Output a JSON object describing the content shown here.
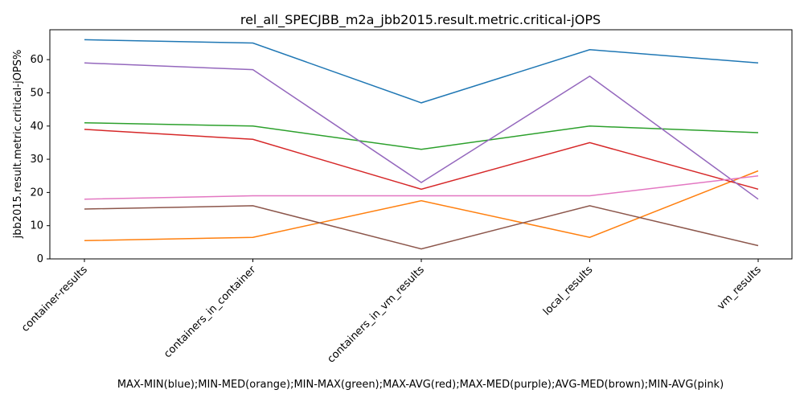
{
  "chart_data": {
    "type": "line",
    "title": "rel_all_SPECJBB_m2a_jbb2015.result.metric.critical-jOPS",
    "xlabel": "MAX-MIN(blue);MIN-MED(orange);MIN-MAX(green);MAX-AVG(red);MAX-MED(purple);AVG-MED(brown);MIN-AVG(pink)",
    "ylabel": "jbb2015.result.metric.critical-jOPS%",
    "categories": [
      "container-results",
      "containers_in_container",
      "containers_in_vm_results",
      "local_results",
      "vm_results"
    ],
    "ylim": [
      0,
      69
    ],
    "yticks": [
      0,
      10,
      20,
      30,
      40,
      50,
      60
    ],
    "grid": false,
    "series": [
      {
        "color": "#1f77b4",
        "values": [
          66,
          65,
          47,
          63,
          59
        ]
      },
      {
        "color": "#ff7f0e",
        "values": [
          5.5,
          6.5,
          17.5,
          6.5,
          26.5
        ]
      },
      {
        "color": "#2ca02c",
        "values": [
          41,
          40,
          33,
          40,
          38
        ]
      },
      {
        "color": "#d62728",
        "values": [
          39,
          36,
          21,
          35,
          21
        ]
      },
      {
        "color": "#9467bd",
        "values": [
          59,
          57,
          23,
          55,
          18
        ]
      },
      {
        "color": "#8c564b",
        "values": [
          15,
          16,
          3,
          16,
          4
        ]
      },
      {
        "color": "#e377c2",
        "values": [
          18,
          19,
          19,
          19,
          25
        ]
      }
    ]
  }
}
